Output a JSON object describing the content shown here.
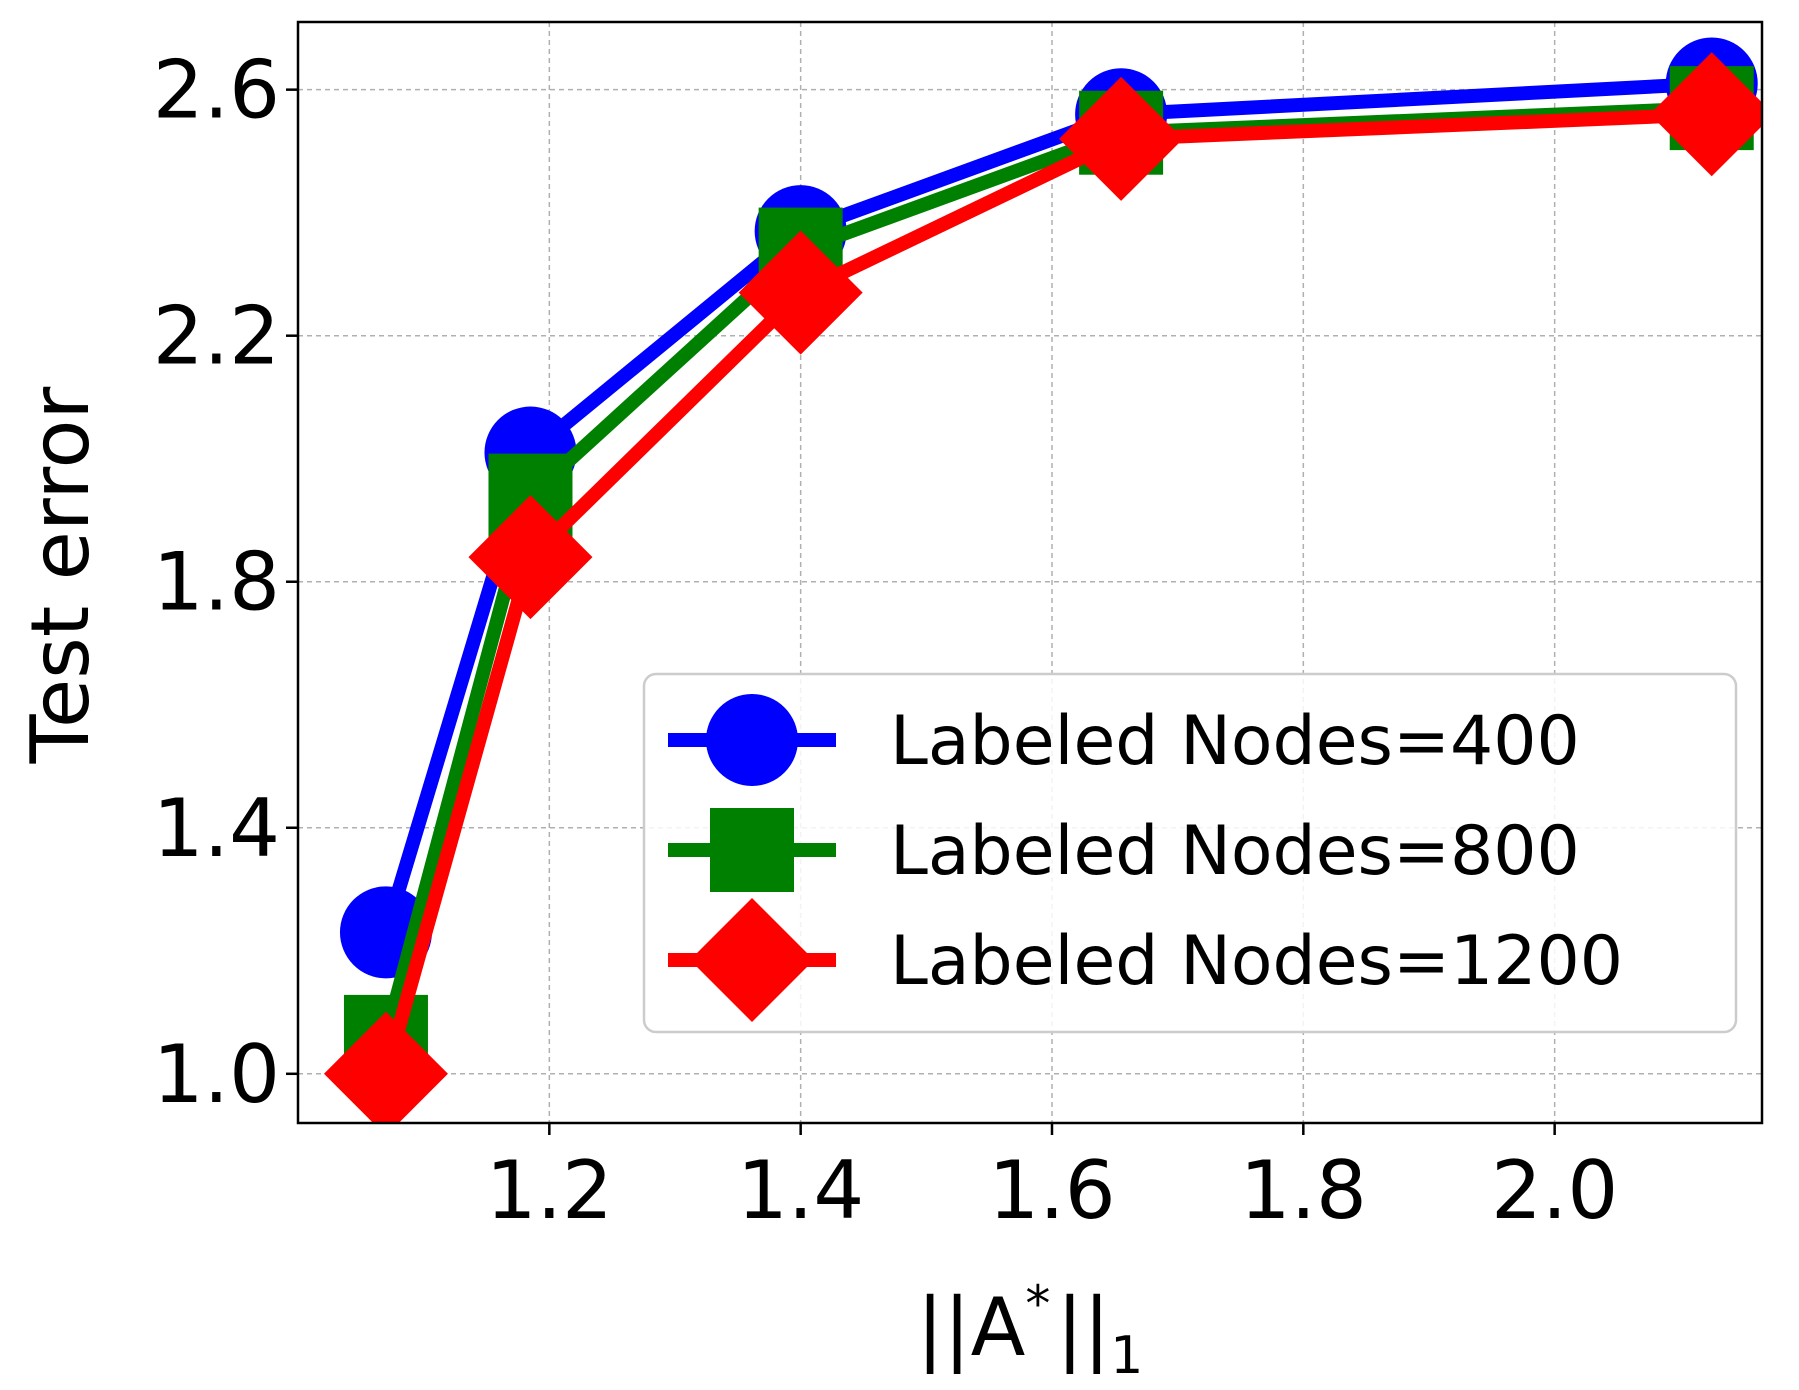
{
  "chart_data": {
    "type": "line",
    "title": "",
    "xlabel_parts": {
      "open": "||A",
      "sup": "*",
      "close": "||",
      "sub": "1"
    },
    "ylabel": "Test error",
    "x": [
      1.07,
      1.185,
      1.4,
      1.655,
      2.125
    ],
    "xlim": [
      1.0,
      2.165
    ],
    "ylim": [
      0.92,
      2.71
    ],
    "xticks": [
      1.2,
      1.4,
      1.6,
      1.8,
      2.0
    ],
    "xtick_labels": [
      "1.2",
      "1.4",
      "1.6",
      "1.8",
      "2.0"
    ],
    "yticks": [
      1.0,
      1.4,
      1.8,
      2.2,
      2.6
    ],
    "ytick_labels": [
      "1.0",
      "1.4",
      "1.8",
      "2.2",
      "2.6"
    ],
    "grid": true,
    "legend_position": "lower-right",
    "series": [
      {
        "name": "Labeled Nodes=400",
        "color": "#0000ff",
        "marker": "circle",
        "values": [
          1.23,
          2.01,
          2.37,
          2.56,
          2.61
        ]
      },
      {
        "name": "Labeled Nodes=800",
        "color": "#008000",
        "marker": "square",
        "values": [
          1.06,
          1.94,
          2.34,
          2.53,
          2.57
        ]
      },
      {
        "name": "Labeled Nodes=1200",
        "color": "#ff0000",
        "marker": "diamond",
        "values": [
          1.0,
          1.84,
          2.27,
          2.52,
          2.56
        ]
      }
    ]
  }
}
